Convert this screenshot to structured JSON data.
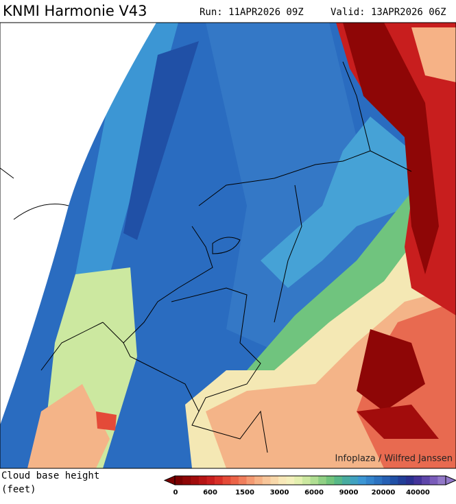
{
  "header": {
    "title": "KNMI Harmonie V43",
    "run": "Run: 11APR2026 09Z",
    "valid": "Valid: 13APR2026 06Z"
  },
  "credit": "Infoplaza / Wilfred Janssen",
  "legend": {
    "title": "Cloud base height",
    "unit": "(feet)",
    "labels": [
      0,
      600,
      1500,
      3000,
      6000,
      9000,
      20000,
      40000
    ],
    "colors": [
      "#7a0000",
      "#8e0606",
      "#a20c0c",
      "#b61414",
      "#c81e1e",
      "#d83028",
      "#e44a38",
      "#ec6448",
      "#f07e5c",
      "#f49a72",
      "#f6b286",
      "#f8c69a",
      "#f8d8aa",
      "#f8e8b8",
      "#f4f0bc",
      "#e4f0b0",
      "#cce8a0",
      "#b0de92",
      "#90d084",
      "#72c47c",
      "#58b888",
      "#48aca0",
      "#40a2c0",
      "#3c96d4",
      "#3484cc",
      "#2c72c0",
      "#2660b4",
      "#2050a6",
      "#223e98",
      "#2a3090",
      "#44349a",
      "#5e46aa",
      "#7a5cba",
      "#9278c8"
    ]
  }
}
